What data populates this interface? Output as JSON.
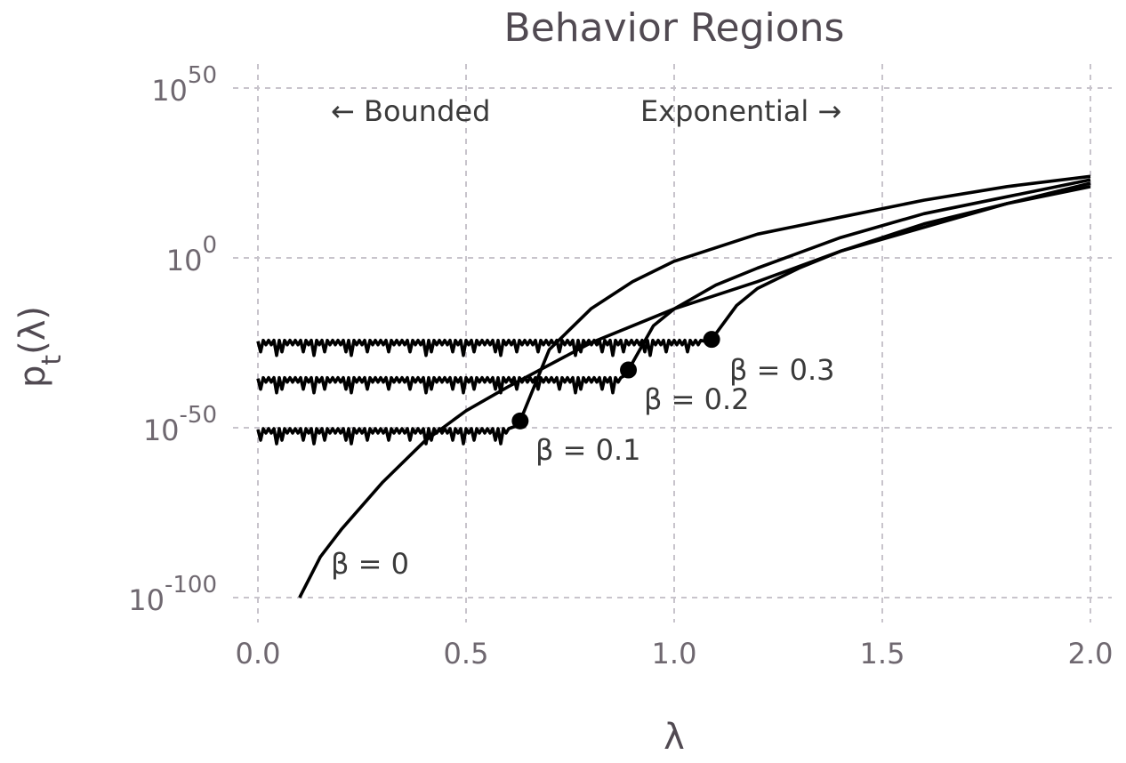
{
  "chart_data": {
    "type": "line",
    "title": "Behavior Regions",
    "xlabel": "λ",
    "ylabel": {
      "main": "p",
      "sub": "t",
      "tail": "(λ)"
    },
    "xlim": [
      0.0,
      2.0
    ],
    "ylim_log10": [
      -100,
      50
    ],
    "yscale": "log",
    "grid": true,
    "x_ticks": [
      "0.0",
      "0.5",
      "1.0",
      "1.5",
      "2.0"
    ],
    "y_ticks": [
      {
        "base": "10",
        "exp": "50",
        "value_log10": 50
      },
      {
        "base": "10",
        "exp": "0",
        "value_log10": 0
      },
      {
        "base": "10",
        "exp": "-50",
        "value_log10": -50
      },
      {
        "base": "10",
        "exp": "-100",
        "value_log10": -100
      }
    ],
    "region_labels": {
      "left": "← Bounded",
      "right": "Exponential →"
    },
    "series": [
      {
        "label": "β = 0",
        "beta": 0.0,
        "threshold_lambda": null,
        "plateau_log10": null,
        "x": [
          0.1,
          0.15,
          0.2,
          0.3,
          0.4,
          0.5,
          0.6,
          0.8,
          1.0,
          1.2,
          1.4,
          1.6,
          1.8,
          2.0
        ],
        "y_log10": [
          -100,
          -88,
          -80,
          -66,
          -54,
          -45,
          -38,
          -25,
          -15,
          -7,
          2,
          9,
          16,
          22
        ]
      },
      {
        "label": "β = 0.1",
        "beta": 0.1,
        "threshold_lambda": 0.63,
        "plateau_log10": -50,
        "x": [
          0.63,
          0.7,
          0.8,
          0.9,
          1.0,
          1.2,
          1.4,
          1.6,
          1.8,
          2.0
        ],
        "y_log10": [
          -48,
          -27,
          -15,
          -7,
          -1,
          7,
          12,
          17,
          21,
          24
        ]
      },
      {
        "label": "β = 0.2",
        "beta": 0.2,
        "threshold_lambda": 0.89,
        "plateau_log10": -35,
        "x": [
          0.89,
          0.95,
          1.0,
          1.1,
          1.2,
          1.4,
          1.6,
          1.8,
          2.0
        ],
        "y_log10": [
          -33,
          -20,
          -15,
          -8,
          -3,
          6,
          13,
          18,
          23
        ]
      },
      {
        "label": "β = 0.3",
        "beta": 0.3,
        "threshold_lambda": 1.09,
        "plateau_log10": -24,
        "x": [
          1.09,
          1.15,
          1.2,
          1.3,
          1.4,
          1.6,
          1.8,
          2.0
        ],
        "y_log10": [
          -24,
          -14,
          -9,
          -3,
          2,
          10,
          16,
          21
        ]
      }
    ]
  }
}
